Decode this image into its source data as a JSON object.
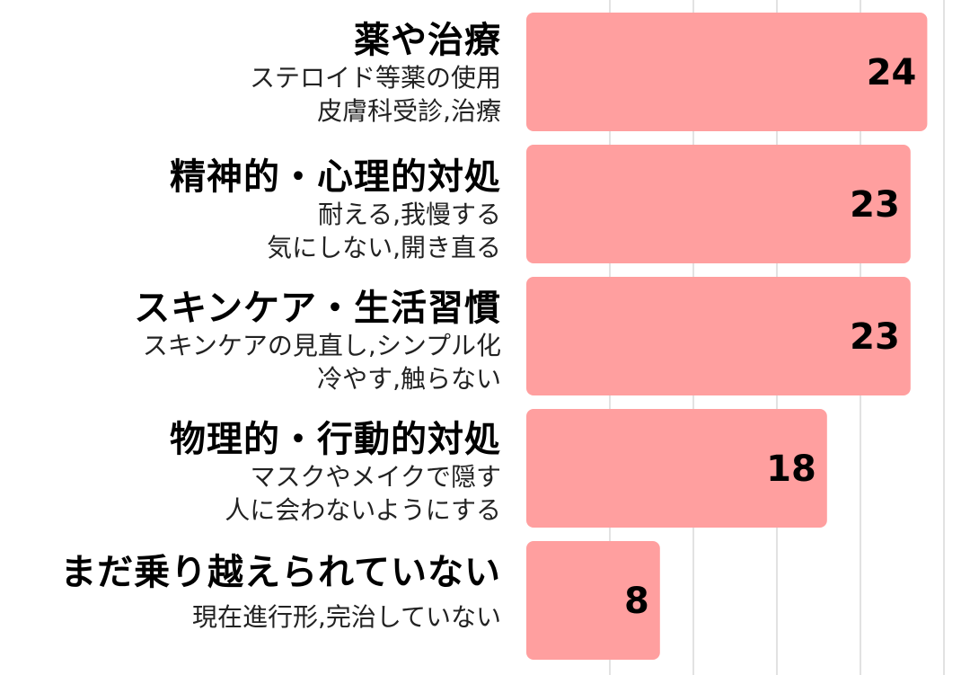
{
  "chart_data": {
    "type": "bar",
    "orientation": "horizontal",
    "categories": [
      {
        "title": "薬や治療",
        "description": [
          "ステロイド等薬の使用",
          "皮膚科受診,治療"
        ]
      },
      {
        "title": "精神的・心理的対処",
        "description": [
          "耐える,我慢する",
          "気にしない,開き直る"
        ]
      },
      {
        "title": "スキンケア・生活習慣",
        "description": [
          "スキンケアの見直し,シンプル化",
          "冷やす,触らない"
        ]
      },
      {
        "title": "物理的・行動的対処",
        "description": [
          "マスクやメイクで隠す",
          "人に会わないようにする"
        ]
      },
      {
        "title": "まだ乗り越えられていない",
        "description": [
          "現在進行形,完治していない"
        ]
      }
    ],
    "values": [
      24,
      23,
      23,
      18,
      8
    ],
    "xlim": [
      0,
      25
    ],
    "grid": true,
    "gridline_values": [
      5,
      10,
      15,
      20,
      25
    ],
    "legend": "none",
    "bar_color": "#ff9f9f",
    "grid_color": "#d9d9d9"
  }
}
